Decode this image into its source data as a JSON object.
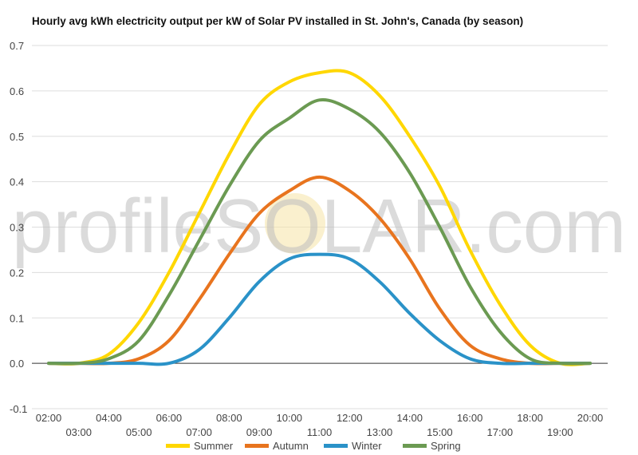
{
  "chart_data": {
    "type": "line",
    "title": "Hourly avg kWh electricity output per kW of Solar PV installed in St. John's, Canada (by season)",
    "xlabel": "",
    "ylabel": "",
    "ylim": [
      -0.1,
      0.7
    ],
    "yticks": [
      "-0.1",
      "0.0",
      "0.1",
      "0.2",
      "0.3",
      "0.4",
      "0.5",
      "0.6",
      "0.7"
    ],
    "categories": [
      "02:00",
      "03:00",
      "04:00",
      "05:00",
      "06:00",
      "07:00",
      "08:00",
      "09:00",
      "10:00",
      "11:00",
      "12:00",
      "13:00",
      "14:00",
      "15:00",
      "16:00",
      "17:00",
      "18:00",
      "19:00",
      "20:00"
    ],
    "grid": true,
    "legend_position": "bottom",
    "watermark": "profileSOLAR.com",
    "series": [
      {
        "name": "Summer",
        "color": "#ffd700",
        "values": [
          0.0,
          0.0,
          0.02,
          0.09,
          0.2,
          0.33,
          0.46,
          0.57,
          0.62,
          0.64,
          0.64,
          0.59,
          0.5,
          0.39,
          0.25,
          0.13,
          0.04,
          0.0,
          0.0
        ]
      },
      {
        "name": "Autumn",
        "color": "#e8741e",
        "values": [
          0.0,
          0.0,
          0.0,
          0.01,
          0.05,
          0.14,
          0.24,
          0.33,
          0.38,
          0.41,
          0.38,
          0.32,
          0.23,
          0.12,
          0.04,
          0.01,
          0.0,
          0.0,
          0.0
        ]
      },
      {
        "name": "Winter",
        "color": "#2a92c8",
        "values": [
          0.0,
          0.0,
          0.0,
          0.0,
          0.0,
          0.03,
          0.1,
          0.18,
          0.23,
          0.24,
          0.23,
          0.18,
          0.11,
          0.05,
          0.01,
          0.0,
          0.0,
          0.0,
          0.0
        ]
      },
      {
        "name": "Spring",
        "color": "#6b9a52",
        "values": [
          0.0,
          0.0,
          0.01,
          0.05,
          0.15,
          0.27,
          0.39,
          0.49,
          0.54,
          0.58,
          0.56,
          0.51,
          0.42,
          0.3,
          0.17,
          0.07,
          0.01,
          0.0,
          0.0
        ]
      }
    ]
  }
}
